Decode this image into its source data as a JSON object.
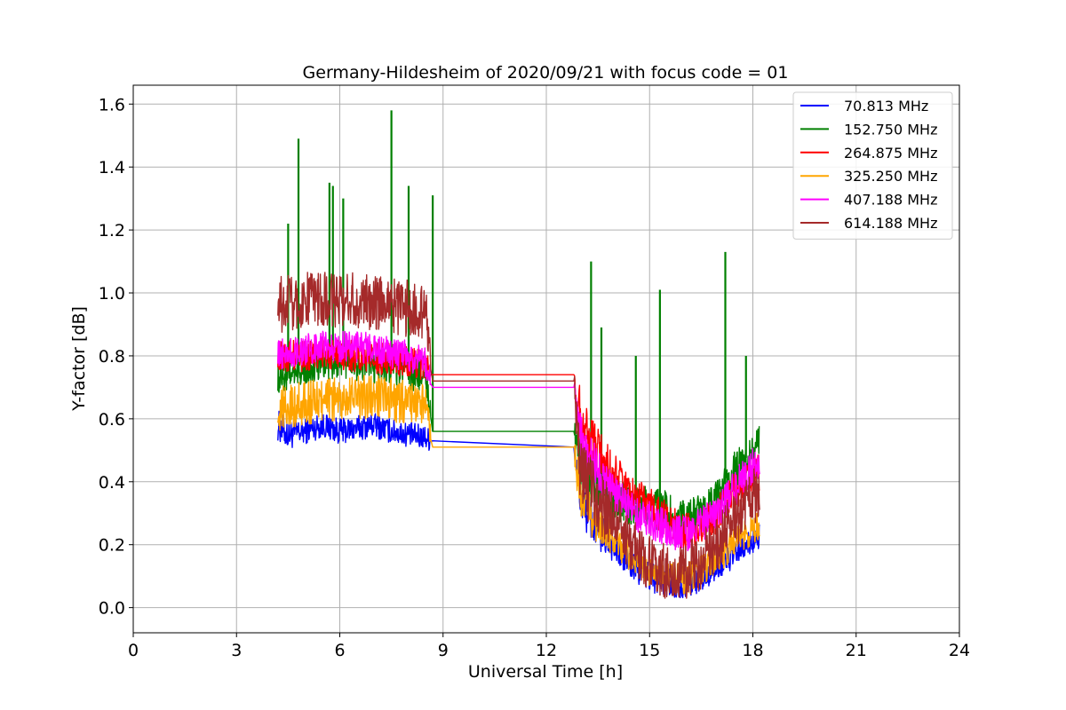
{
  "chart_data": {
    "type": "line",
    "title": "Germany-Hildesheim of 2020/09/21 with focus code = 01",
    "xlabel": "Universal Time [h]",
    "ylabel": "Y-factor [dB]",
    "xlim": [
      0,
      24
    ],
    "ylim": [
      -0.08,
      1.66
    ],
    "xticks": [
      0,
      3,
      6,
      9,
      12,
      15,
      18,
      21,
      24
    ],
    "yticks": [
      0.0,
      0.2,
      0.4,
      0.6,
      0.8,
      1.0,
      1.2,
      1.4,
      1.6
    ],
    "xtick_labels": [
      "0",
      "3",
      "6",
      "9",
      "12",
      "15",
      "18",
      "21",
      "24"
    ],
    "ytick_labels": [
      "0.0",
      "0.2",
      "0.4",
      "0.6",
      "0.8",
      "1.0",
      "1.2",
      "1.4",
      "1.6"
    ],
    "grid": true,
    "legend_position": "top-right",
    "series": [
      {
        "name": " 70.813 MHz",
        "color": "#0000ff",
        "x": [
          4.2,
          4.5,
          5.0,
          5.5,
          6.0,
          6.5,
          7.0,
          7.5,
          8.0,
          8.5,
          8.7,
          12.8,
          13.0,
          13.5,
          14.0,
          14.5,
          15.0,
          15.5,
          16.0,
          16.5,
          17.0,
          17.5,
          18.0,
          18.2
        ],
        "y": [
          0.58,
          0.55,
          0.56,
          0.58,
          0.56,
          0.57,
          0.58,
          0.56,
          0.55,
          0.54,
          0.53,
          0.51,
          0.34,
          0.24,
          0.19,
          0.13,
          0.1,
          0.08,
          0.07,
          0.09,
          0.13,
          0.17,
          0.21,
          0.23
        ],
        "amplitude": [
          0.05,
          0.05,
          0.04,
          0.04,
          0.04,
          0.04,
          0.04,
          0.04,
          0.04,
          0.04,
          0.03,
          0.04,
          0.08,
          0.06,
          0.05,
          0.05,
          0.05,
          0.05,
          0.04,
          0.04,
          0.04,
          0.04,
          0.04,
          0.04
        ]
      },
      {
        "name": "152.750 MHz",
        "color": "#008000",
        "x": [
          4.2,
          4.5,
          5.0,
          5.5,
          6.0,
          6.5,
          7.0,
          7.5,
          8.0,
          8.5,
          8.7,
          12.8,
          13.0,
          13.5,
          14.0,
          14.5,
          15.0,
          15.5,
          16.0,
          16.5,
          17.0,
          17.5,
          18.0,
          18.2
        ],
        "y": [
          0.74,
          0.75,
          0.77,
          0.78,
          0.79,
          0.78,
          0.77,
          0.76,
          0.75,
          0.74,
          0.56,
          0.56,
          0.45,
          0.38,
          0.34,
          0.33,
          0.32,
          0.3,
          0.28,
          0.3,
          0.36,
          0.44,
          0.5,
          0.52
        ],
        "amplitude": [
          0.06,
          0.06,
          0.06,
          0.06,
          0.06,
          0.06,
          0.06,
          0.06,
          0.06,
          0.06,
          0.03,
          0.04,
          0.1,
          0.08,
          0.07,
          0.07,
          0.07,
          0.07,
          0.06,
          0.06,
          0.06,
          0.06,
          0.06,
          0.06
        ],
        "spikes": [
          [
            4.5,
            1.22
          ],
          [
            4.8,
            1.49
          ],
          [
            5.7,
            1.35
          ],
          [
            5.8,
            1.34
          ],
          [
            6.1,
            1.3
          ],
          [
            7.5,
            1.58
          ],
          [
            8.0,
            1.34
          ],
          [
            8.7,
            1.31
          ],
          [
            13.3,
            1.1
          ],
          [
            13.6,
            0.89
          ],
          [
            14.6,
            0.8
          ],
          [
            15.3,
            1.01
          ],
          [
            17.2,
            1.13
          ],
          [
            17.8,
            0.8
          ]
        ]
      },
      {
        "name": "264.875 MHz",
        "color": "#ff0000",
        "x": [
          4.2,
          4.5,
          5.0,
          5.5,
          6.0,
          6.5,
          7.0,
          7.5,
          8.0,
          8.5,
          8.7,
          12.8,
          13.0,
          13.5,
          14.0,
          14.5,
          15.0,
          15.5,
          16.0,
          16.5,
          17.0,
          17.5,
          18.0,
          18.2
        ],
        "y": [
          0.8,
          0.8,
          0.8,
          0.81,
          0.8,
          0.8,
          0.79,
          0.79,
          0.78,
          0.77,
          0.74,
          0.74,
          0.6,
          0.5,
          0.42,
          0.36,
          0.32,
          0.28,
          0.24,
          0.26,
          0.3,
          0.37,
          0.42,
          0.43
        ],
        "amplitude": [
          0.05,
          0.05,
          0.05,
          0.05,
          0.05,
          0.05,
          0.05,
          0.05,
          0.05,
          0.05,
          0.03,
          0.05,
          0.1,
          0.08,
          0.07,
          0.06,
          0.06,
          0.06,
          0.06,
          0.06,
          0.06,
          0.06,
          0.06,
          0.06
        ]
      },
      {
        "name": "325.250 MHz",
        "color": "#ffa500",
        "x": [
          4.2,
          4.5,
          5.0,
          5.5,
          6.0,
          6.5,
          7.0,
          7.5,
          8.0,
          8.5,
          8.7,
          12.8,
          13.0,
          13.5,
          14.0,
          14.5,
          15.0,
          15.5,
          16.0,
          16.5,
          17.0,
          17.5,
          18.0,
          18.2
        ],
        "y": [
          0.63,
          0.64,
          0.65,
          0.66,
          0.66,
          0.67,
          0.67,
          0.66,
          0.65,
          0.64,
          0.51,
          0.51,
          0.34,
          0.26,
          0.21,
          0.16,
          0.12,
          0.1,
          0.09,
          0.12,
          0.16,
          0.21,
          0.25,
          0.27
        ],
        "amplitude": [
          0.07,
          0.07,
          0.07,
          0.07,
          0.07,
          0.07,
          0.07,
          0.07,
          0.07,
          0.07,
          0.03,
          0.05,
          0.08,
          0.06,
          0.05,
          0.05,
          0.05,
          0.05,
          0.05,
          0.05,
          0.05,
          0.05,
          0.05,
          0.05
        ]
      },
      {
        "name": "407.188 MHz",
        "color": "#ff00ff",
        "x": [
          4.2,
          4.5,
          5.0,
          5.5,
          6.0,
          6.5,
          7.0,
          7.5,
          8.0,
          8.5,
          8.7,
          12.8,
          13.0,
          13.5,
          14.0,
          14.5,
          15.0,
          15.5,
          16.0,
          16.5,
          17.0,
          17.5,
          18.0,
          18.2
        ],
        "y": [
          0.8,
          0.81,
          0.82,
          0.83,
          0.83,
          0.83,
          0.82,
          0.81,
          0.8,
          0.78,
          0.7,
          0.7,
          0.52,
          0.43,
          0.36,
          0.31,
          0.28,
          0.25,
          0.23,
          0.26,
          0.31,
          0.38,
          0.45,
          0.47
        ],
        "amplitude": [
          0.05,
          0.05,
          0.05,
          0.05,
          0.05,
          0.05,
          0.05,
          0.05,
          0.05,
          0.05,
          0.03,
          0.05,
          0.09,
          0.07,
          0.06,
          0.06,
          0.06,
          0.06,
          0.06,
          0.06,
          0.06,
          0.06,
          0.06,
          0.06
        ]
      },
      {
        "name": "614.188 MHz",
        "color": "#a52a2a",
        "x": [
          4.2,
          4.5,
          5.0,
          5.5,
          6.0,
          6.5,
          7.0,
          7.5,
          8.0,
          8.5,
          8.7,
          12.8,
          13.0,
          13.5,
          14.0,
          14.5,
          15.0,
          15.5,
          16.0,
          16.5,
          17.0,
          17.5,
          18.0,
          18.2
        ],
        "y": [
          0.96,
          0.97,
          0.98,
          0.98,
          0.98,
          0.98,
          0.97,
          0.96,
          0.95,
          0.93,
          0.72,
          0.72,
          0.42,
          0.34,
          0.27,
          0.2,
          0.14,
          0.11,
          0.11,
          0.15,
          0.21,
          0.28,
          0.35,
          0.37
        ],
        "amplitude": [
          0.09,
          0.09,
          0.09,
          0.09,
          0.09,
          0.09,
          0.09,
          0.09,
          0.09,
          0.09,
          0.05,
          0.05,
          0.12,
          0.1,
          0.09,
          0.09,
          0.09,
          0.09,
          0.09,
          0.09,
          0.09,
          0.09,
          0.09,
          0.09
        ]
      }
    ]
  }
}
